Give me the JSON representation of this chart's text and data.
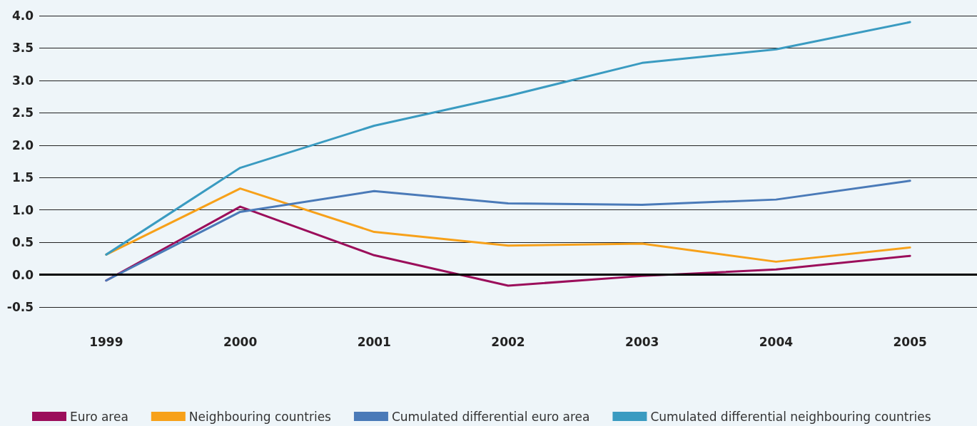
{
  "chart_data": {
    "type": "line",
    "categories": [
      "1999",
      "2000",
      "2001",
      "2002",
      "2003",
      "2004",
      "2005"
    ],
    "series": [
      {
        "name": "Euro area",
        "color": "#9b0e5b",
        "values": [
          -0.09,
          1.05,
          0.3,
          -0.17,
          -0.02,
          0.08,
          0.29
        ]
      },
      {
        "name": "Neighbouring countries",
        "color": "#f7a11a",
        "values": [
          0.31,
          1.33,
          0.66,
          0.45,
          0.48,
          0.2,
          0.42
        ]
      },
      {
        "name": "Cumulated differential euro area",
        "color": "#4a7ab8",
        "values": [
          -0.09,
          0.97,
          1.29,
          1.1,
          1.08,
          1.16,
          1.45
        ]
      },
      {
        "name": "Cumulated differential neighbouring countries",
        "color": "#3a9bc1",
        "values": [
          0.31,
          1.65,
          2.3,
          2.76,
          3.27,
          3.48,
          3.9
        ]
      }
    ],
    "ylim": [
      -0.5,
      4.0
    ],
    "yticks": [
      -0.5,
      {
        "value": 0,
        "label": "0.0"
      },
      0.5,
      {
        "value": 1,
        "label": "1.0"
      },
      1.5,
      {
        "value": 2,
        "label": "2.0"
      },
      2.5,
      {
        "value": 3,
        "label": "3.0"
      },
      3.5,
      {
        "value": 4,
        "label": "4.0"
      }
    ],
    "ref_lines": [
      {
        "axis": "y",
        "value": 0,
        "color": "#000000"
      }
    ],
    "grid": "y",
    "legend": "bottom",
    "marker": "none",
    "line_style": "solid"
  }
}
